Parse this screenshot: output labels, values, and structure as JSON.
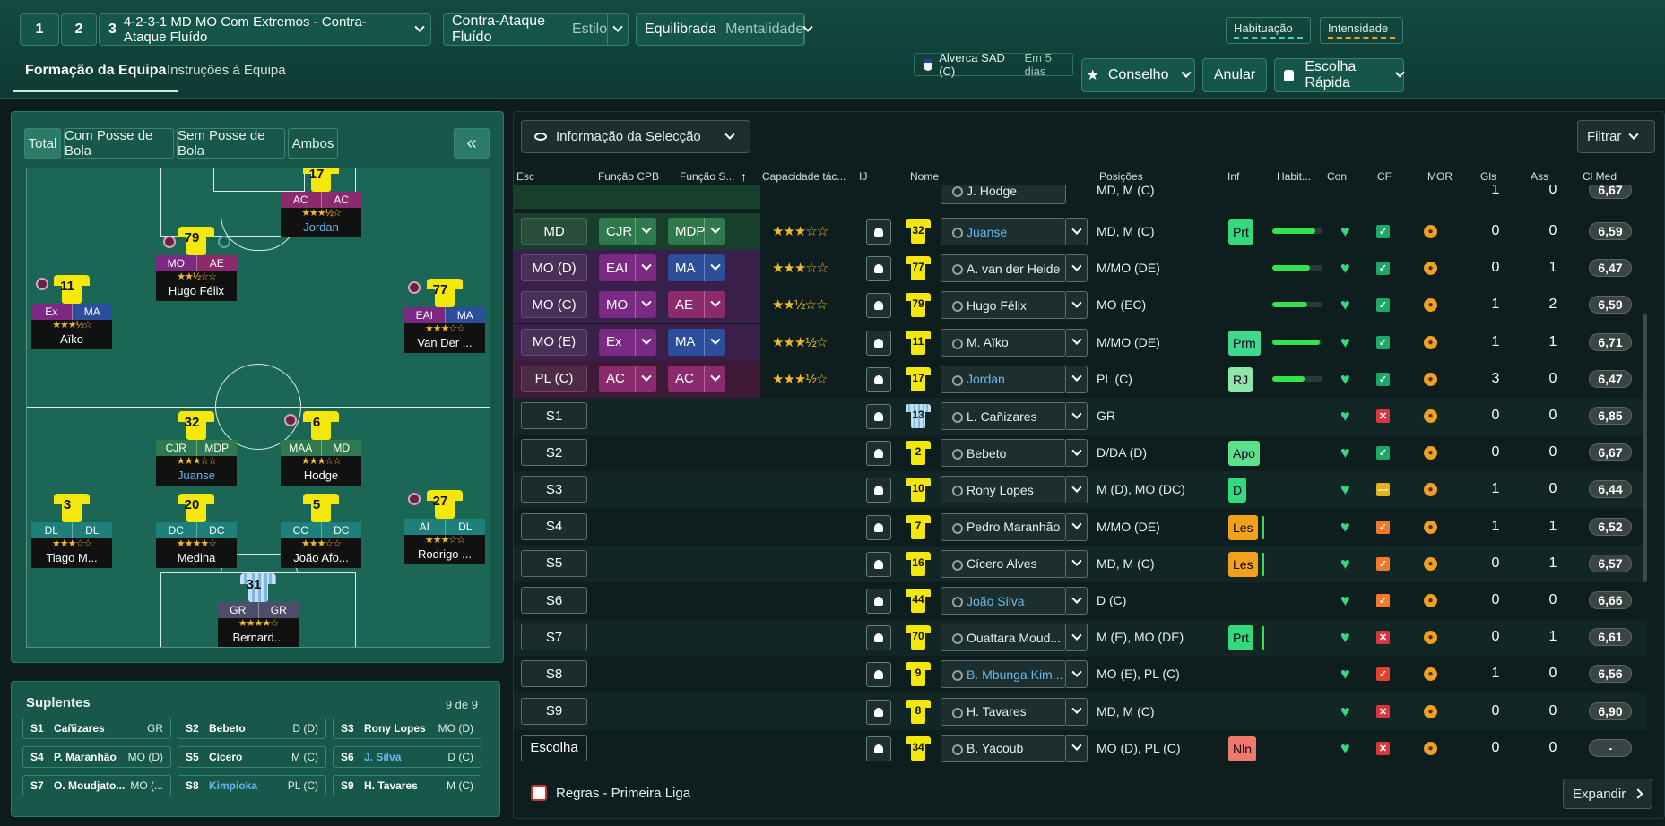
{
  "top": {
    "slot1": "1",
    "slot2": "2",
    "slot3": "3",
    "tactic_name": "4-2-3-1 MD MO Com Extremos - Contra-Ataque Fluído",
    "style_value": "Contra-Ataque Fluído",
    "style_label": "Estilo",
    "mentality_value": "Equilibrada",
    "mentality_label": "Mentalidade",
    "familiarity_label": "Habituação",
    "intensity_label": "Intensidade",
    "tab_formation": "Formação da Equipa",
    "tab_instructions": "Instruções à Equipa",
    "next_match": "Alverca SAD (C)",
    "next_match_when": "Em 5 dias",
    "advice_label": "Conselho",
    "undo_label": "Anular",
    "quick_pick_label": "Escolha Rápida"
  },
  "pitch_tabs": [
    "Total",
    "Com Posse de Bola",
    "Sem Posse de Bola",
    "Ambos"
  ],
  "pitch_players": [
    {
      "num": "17",
      "r1": "AC",
      "r2": "AC",
      "stars": "★★★½☆",
      "name": "Jordan",
      "blue": true,
      "c1": "#8c2a6e",
      "c2": "#8c2a6e"
    },
    {
      "num": "79",
      "r1": "MO",
      "r2": "AE",
      "stars": "★★½☆☆",
      "name": "Hugo Félix",
      "blue": false,
      "c1": "#7a2a83",
      "c2": "#8c2a6e"
    },
    {
      "num": "11",
      "r1": "Ex",
      "r2": "MA",
      "stars": "★★★½☆",
      "name": "Aïko",
      "blue": false,
      "c1": "#7a2a83",
      "c2": "#2b4f9a"
    },
    {
      "num": "77",
      "r1": "EAI",
      "r2": "MA",
      "stars": "★★★☆☆",
      "name": "Van Der ...",
      "blue": false,
      "c1": "#7a2a83",
      "c2": "#2b4f9a"
    },
    {
      "num": "32",
      "r1": "CJR",
      "r2": "MDP",
      "stars": "★★★☆☆",
      "name": "Juanse",
      "blue": true,
      "c1": "#2e7a4e",
      "c2": "#2e7a4e"
    },
    {
      "num": "6",
      "r1": "MAA",
      "r2": "MD",
      "stars": "★★★☆☆",
      "name": "Hodge",
      "blue": false,
      "c1": "#2e7a4e",
      "c2": "#2e7a4e"
    },
    {
      "num": "3",
      "r1": "DL",
      "r2": "DL",
      "stars": "★★★☆☆",
      "name": "Tiago M...",
      "blue": false,
      "c1": "#1f7f7a",
      "c2": "#1f7f7a"
    },
    {
      "num": "20",
      "r1": "DC",
      "r2": "DC",
      "stars": "★★★★☆",
      "name": "Medina",
      "blue": false,
      "c1": "#1f7f7a",
      "c2": "#1f7f7a"
    },
    {
      "num": "5",
      "r1": "CC",
      "r2": "DC",
      "stars": "★★★☆☆",
      "name": "João Afo...",
      "blue": false,
      "c1": "#1f7f7a",
      "c2": "#1f7f7a"
    },
    {
      "num": "27",
      "r1": "AI",
      "r2": "DL",
      "stars": "★★★☆☆",
      "name": "Rodrigo ...",
      "blue": false,
      "c1": "#1f7f7a",
      "c2": "#1f7f7a"
    },
    {
      "num": "31",
      "r1": "GR",
      "r2": "GR",
      "stars": "★★★★☆",
      "name": "Bernard...",
      "blue": false,
      "c1": "#4e4e6a",
      "c2": "#4e4e6a",
      "gk": true
    }
  ],
  "subs": {
    "title": "Suplentes",
    "count": "9 de 9",
    "items": [
      {
        "slot": "S1",
        "name": "Cañizares",
        "pos": "GR"
      },
      {
        "slot": "S2",
        "name": "Bebeto",
        "pos": "D (D)"
      },
      {
        "slot": "S3",
        "name": "Rony Lopes",
        "pos": "MO (D)"
      },
      {
        "slot": "S4",
        "name": "P. Maranhão",
        "pos": "MO (D)"
      },
      {
        "slot": "S5",
        "name": "Cícero",
        "pos": "M (C)"
      },
      {
        "slot": "S6",
        "name": "J. Silva",
        "pos": "D (C)",
        "blue": true
      },
      {
        "slot": "S7",
        "name": "O. Moudjato...",
        "pos": "MO (..."
      },
      {
        "slot": "S8",
        "name": "Kimpioka",
        "pos": "PL (C)",
        "blue": true
      },
      {
        "slot": "S9",
        "name": "H. Tavares",
        "pos": "M (C)"
      }
    ]
  },
  "table": {
    "view_label": "Informação da Selecção",
    "filter_label": "Filtrar",
    "headers": [
      "Esc",
      "Função CPB",
      "Função S...",
      "Capacidade tác...",
      "IJ",
      "Nome",
      "Posições",
      "Inf",
      "Habit...",
      "Con",
      "CF",
      "MOR",
      "Gls",
      "Ass",
      "Cl Med"
    ],
    "partial_row": {
      "name": "J. Hodge",
      "pos": "MD, M (C)",
      "gls": "1",
      "ass": "0",
      "avg": "6,67"
    },
    "rows": [
      {
        "slot": "MD",
        "cpb": "CJR",
        "sp": "MDP",
        "stars": "★★★☆☆",
        "num": "32",
        "name": "Juanse",
        "blue": true,
        "pos": "MD, M (C)",
        "inf": "Prt",
        "hab": 0.85,
        "cf": "ok",
        "gls": "0",
        "ass": "0",
        "avg": "6,59",
        "tint": "#173f2b",
        "cpbc": "#2e7a4e",
        "spc": "#2e7a4e"
      },
      {
        "slot": "MO (D)",
        "cpb": "EAI",
        "sp": "MA",
        "stars": "★★★☆☆",
        "num": "77",
        "name": "A. van der Heide",
        "pos": "M/MO (DE)",
        "inf": "",
        "hab": 0.75,
        "cf": "ok",
        "gls": "0",
        "ass": "1",
        "avg": "6,47",
        "tint": "#3a1f4a",
        "cpbc": "#7a2a83",
        "spc": "#2b4f9a"
      },
      {
        "slot": "MO (C)",
        "cpb": "MO",
        "sp": "AE",
        "stars": "★★½☆☆",
        "num": "79",
        "name": "Hugo Félix",
        "pos": "MO (EC)",
        "inf": "",
        "hab": 0.7,
        "cf": "ok",
        "gls": "1",
        "ass": "2",
        "avg": "6,59",
        "tint": "#3a1f4a",
        "cpbc": "#7a2a83",
        "spc": "#8c2a6e"
      },
      {
        "slot": "MO (E)",
        "cpb": "Ex",
        "sp": "MA",
        "stars": "★★★½☆",
        "num": "11",
        "name": "M. Aïko",
        "pos": "M/MO (DE)",
        "inf": "Prm",
        "hab": 0.95,
        "cf": "ok",
        "gls": "1",
        "ass": "1",
        "avg": "6,71",
        "tint": "#3a1f4a",
        "cpbc": "#7a2a83",
        "spc": "#2b4f9a"
      },
      {
        "slot": "PL (C)",
        "cpb": "AC",
        "sp": "AC",
        "stars": "★★★½☆",
        "num": "17",
        "name": "Jordan",
        "blue": true,
        "pos": "PL (C)",
        "inf": "RJ",
        "hab": 0.65,
        "cf": "ok",
        "gls": "3",
        "ass": "0",
        "avg": "6,47",
        "tint": "#3f1a36",
        "cpbc": "#8c2a6e",
        "spc": "#8c2a6e"
      },
      {
        "slot": "S1",
        "num": "13",
        "gk": true,
        "name": "L. Cañizares",
        "pos": "GR",
        "inf": "",
        "cf": "x",
        "gls": "0",
        "ass": "0",
        "avg": "6,85"
      },
      {
        "slot": "S2",
        "num": "2",
        "name": "Bebeto",
        "pos": "D/DA (D)",
        "inf": "Apo",
        "cf": "ok",
        "gls": "0",
        "ass": "0",
        "avg": "6,67"
      },
      {
        "slot": "S3",
        "num": "10",
        "name": "Rony Lopes",
        "pos": "M (D), MO (DC)",
        "inf": "D",
        "cf": "dash",
        "gls": "1",
        "ass": "0",
        "avg": "6,44"
      },
      {
        "slot": "S4",
        "num": "7",
        "name": "Pedro Maranhão",
        "pos": "M/MO (DE)",
        "inf": "Les",
        "cf": "warn",
        "gls": "1",
        "ass": "1",
        "avg": "6,52"
      },
      {
        "slot": "S5",
        "num": "16",
        "name": "Cícero Alves",
        "pos": "MD, M (C)",
        "inf": "Les",
        "cf": "warn",
        "gls": "0",
        "ass": "1",
        "avg": "6,57"
      },
      {
        "slot": "S6",
        "num": "44",
        "name": "João Silva",
        "blue": true,
        "pos": "D (C)",
        "inf": "",
        "cf": "warn",
        "gls": "0",
        "ass": "0",
        "avg": "6,66"
      },
      {
        "slot": "S7",
        "num": "70",
        "name": "Ouattara Moud...",
        "pos": "M (E), MO (DE)",
        "inf": "Prt",
        "cf": "x",
        "gls": "0",
        "ass": "1",
        "avg": "6,61"
      },
      {
        "slot": "S8",
        "num": "9",
        "name": "B. Mbunga Kim...",
        "blue": true,
        "pos": "MO (E), PL (C)",
        "inf": "",
        "cf": "warnx",
        "gls": "1",
        "ass": "0",
        "avg": "6,56"
      },
      {
        "slot": "S9",
        "num": "8",
        "name": "H. Tavares",
        "pos": "MD, M (C)",
        "inf": "",
        "cf": "x",
        "gls": "0",
        "ass": "0",
        "avg": "6,90"
      },
      {
        "slot": "Escolha",
        "num": "34",
        "name": "B. Yacoub",
        "pos": "MO (D), PL (C)",
        "inf": "Nln",
        "cf": "x",
        "gls": "0",
        "ass": "0",
        "avg": "-"
      }
    ],
    "footer_rules": "Regras - Primeira Liga",
    "expand_label": "Expandir"
  },
  "colors": {
    "accent": "#14574a",
    "hab_green": "#34e34b",
    "inf_green": "#33d97a",
    "inf_orange": "#f2a21a",
    "inf_red": "#f07a6a"
  }
}
